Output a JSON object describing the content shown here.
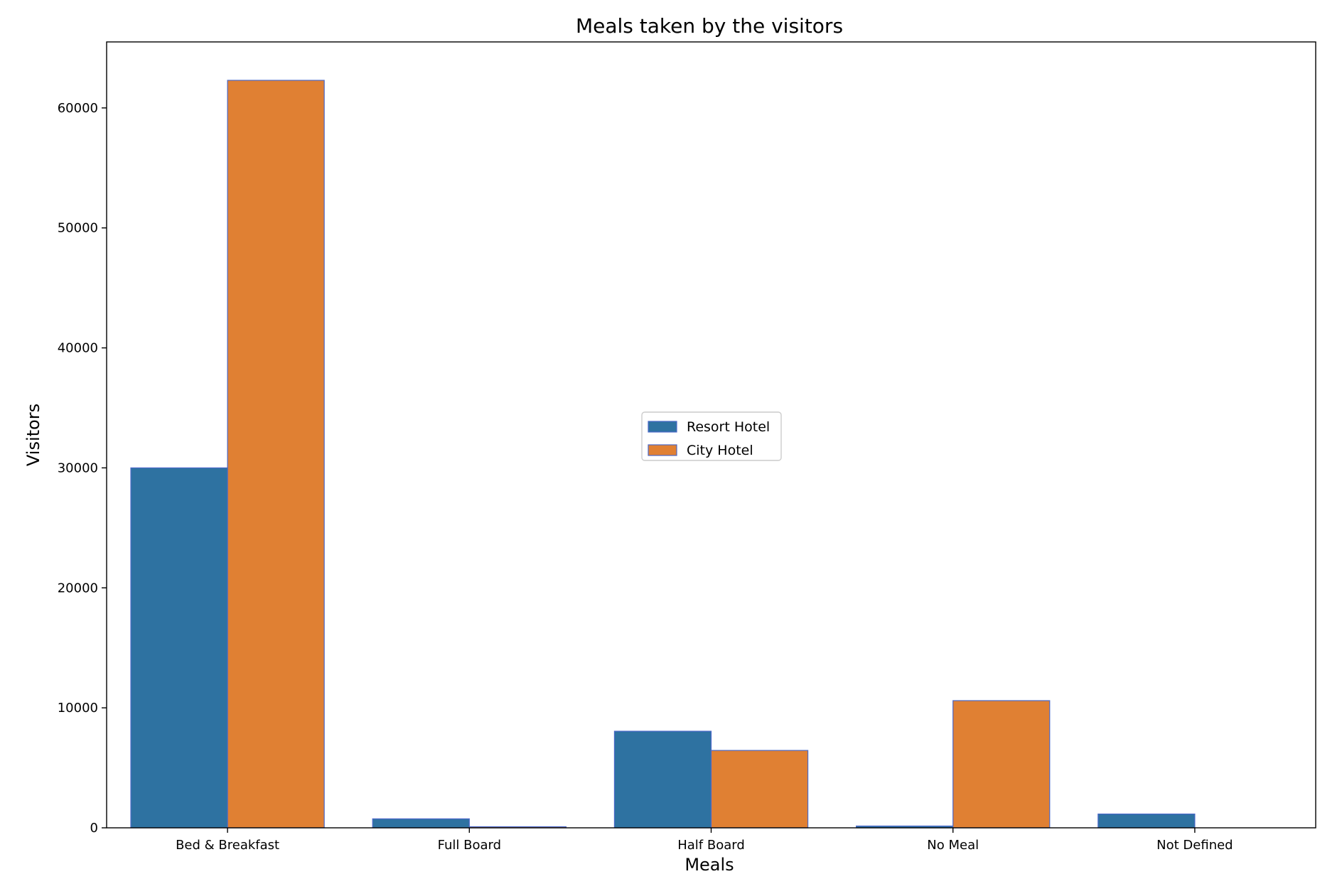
{
  "chart_data": {
    "type": "bar",
    "title": "Meals taken by the visitors",
    "xlabel": "Meals",
    "ylabel": "Visitors",
    "categories": [
      "Bed & Breakfast",
      "Full Board",
      "Half Board",
      "No Meal",
      "Not Defined"
    ],
    "series": [
      {
        "name": "Resort Hotel",
        "color": "#2e72a1",
        "values": [
          30000,
          750,
          8050,
          150,
          1150
        ]
      },
      {
        "name": "City Hotel",
        "color": "#e08033",
        "values": [
          62300,
          90,
          6450,
          10600,
          0
        ]
      }
    ],
    "ylim": [
      0,
      65500
    ],
    "yticks": [
      0,
      10000,
      20000,
      30000,
      40000,
      50000,
      60000
    ],
    "grid": false,
    "legend_position": "center",
    "bar_edge_color": "#4a68c8"
  }
}
